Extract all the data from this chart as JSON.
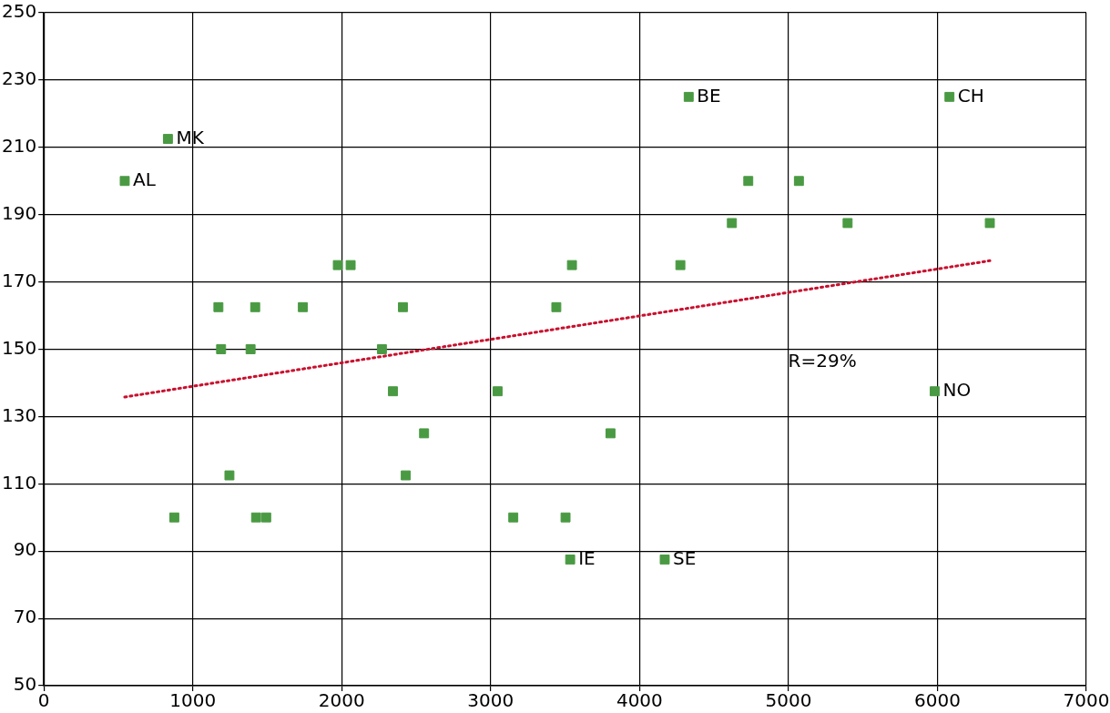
{
  "chart_data": {
    "type": "scatter",
    "xlim": [
      0,
      7000
    ],
    "xticks": [
      0,
      1000,
      2000,
      3000,
      4000,
      5000,
      6000,
      7000
    ],
    "ylim": [
      50,
      250
    ],
    "yticks": [
      50,
      70,
      90,
      110,
      130,
      150,
      170,
      190,
      210,
      230,
      250
    ],
    "grid": true,
    "legend": false,
    "marker": "square",
    "series": [
      {
        "color": "#4a9a43",
        "x": [
          543,
          833,
          4330,
          6081,
          4730,
          5070,
          4620,
          5397,
          6352,
          1974,
          2060,
          3546,
          4274,
          1172,
          1419,
          1739,
          2411,
          3441,
          1190,
          1388,
          2270,
          2344,
          3047,
          5982,
          2553,
          3805,
          1246,
          2430,
          876,
          1425,
          1493,
          3152,
          3503,
          3534,
          4169
        ],
        "values": [
          200,
          212.5,
          225,
          225,
          200,
          200,
          187.5,
          187.5,
          187.5,
          175,
          175,
          175,
          175,
          162.5,
          162.5,
          162.5,
          162.5,
          162.5,
          150,
          150,
          150,
          137.5,
          137.5,
          137.5,
          125,
          125,
          112.5,
          112.5,
          100,
          100,
          100,
          100,
          100,
          87.5,
          87.5
        ]
      },
      {
        "type": "line",
        "color": "#c8102e",
        "line_style": "dotted",
        "marker": "none",
        "x": [
          543,
          6352
        ],
        "values": [
          135.8,
          176.3
        ]
      }
    ],
    "annotations": [
      {
        "text": "AL",
        "x": 543,
        "y": 200
      },
      {
        "text": "MK",
        "x": 833,
        "y": 212.5
      },
      {
        "text": "BE",
        "x": 4330,
        "y": 225
      },
      {
        "text": "CH",
        "x": 6081,
        "y": 225
      },
      {
        "text": "NO",
        "x": 5982,
        "y": 137.5
      },
      {
        "text": "IE",
        "x": 3534,
        "y": 87.5
      },
      {
        "text": "SE",
        "x": 4169,
        "y": 87.5
      },
      "R=29%"
    ]
  }
}
